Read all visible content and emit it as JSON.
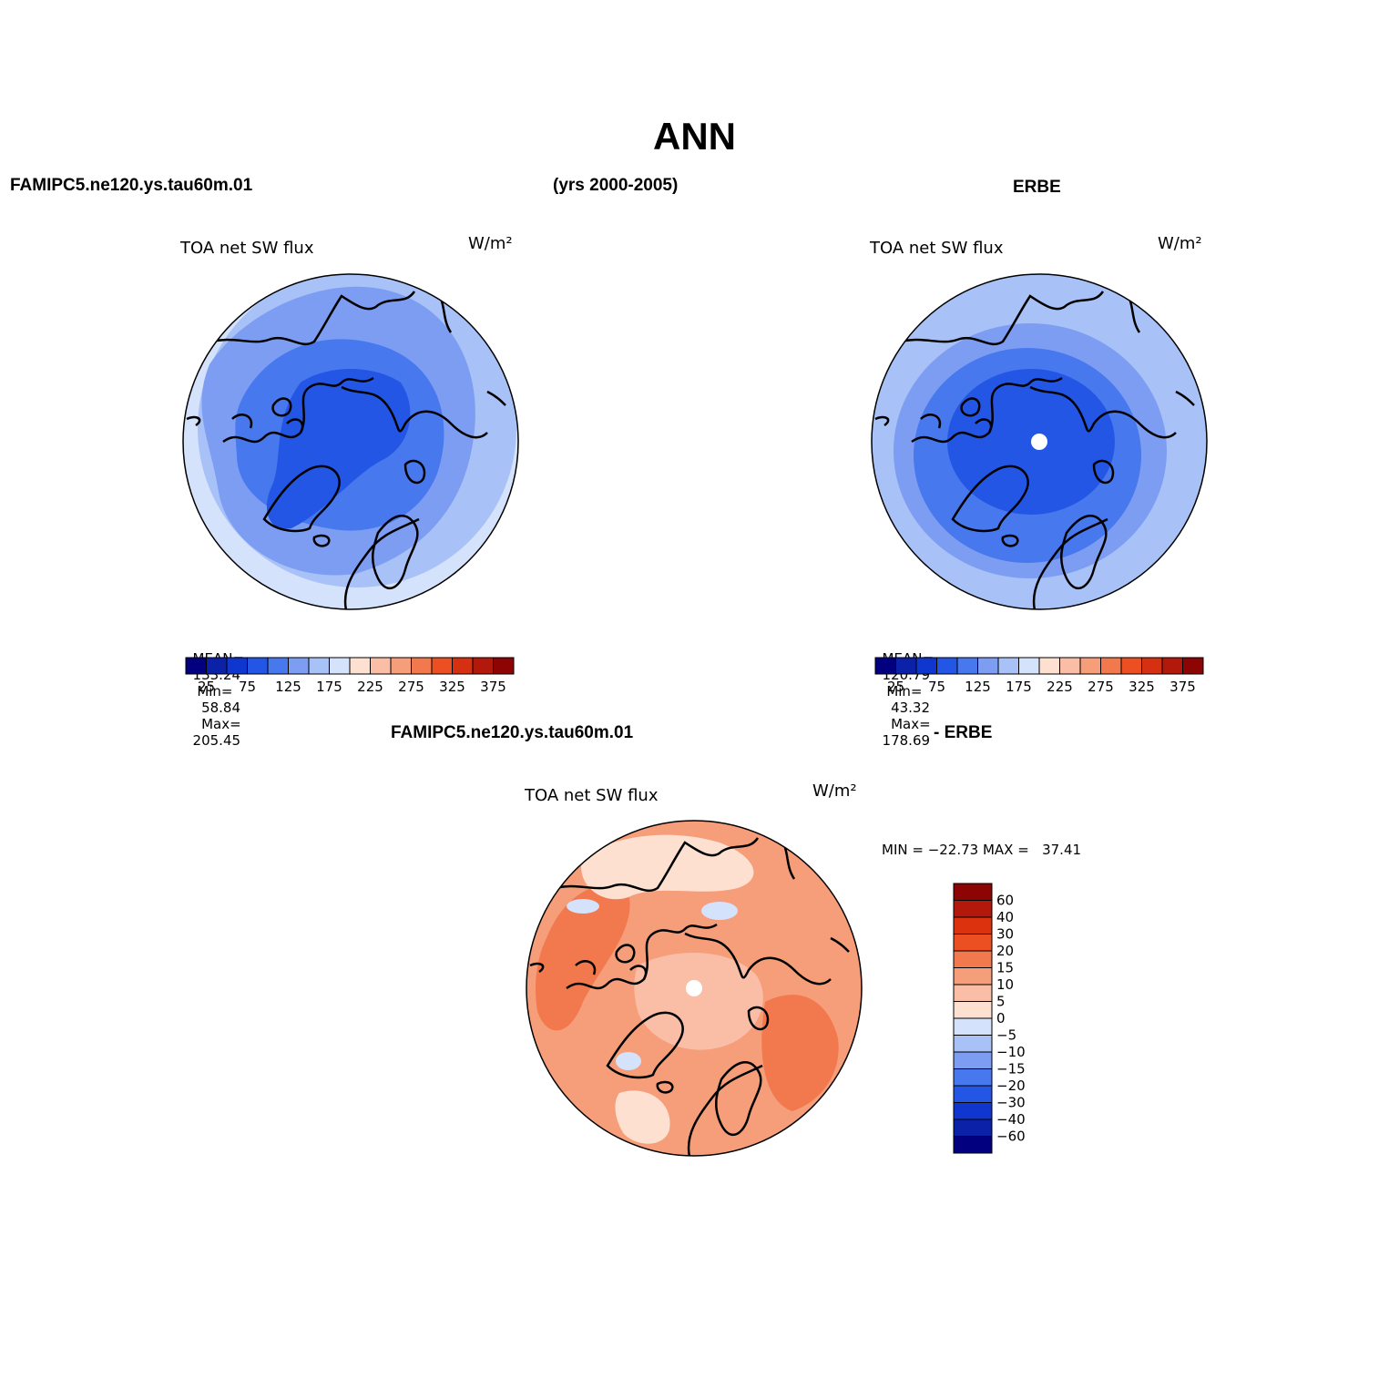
{
  "page": {
    "main_title": "ANN",
    "case_name": "FAMIPC5.ne120.ys.tau60m.01",
    "years": "(yrs 2000-2005)",
    "obs_name": "ERBE",
    "diff_case": "FAMIPC5.ne120.ys.tau60m.01",
    "diff_obs": "- ERBE"
  },
  "panels": {
    "model": {
      "variable": "TOA net SW flux",
      "units": "W/m²",
      "stats": {
        "mean_label": "MEAN=",
        "mean": "133.24",
        "min_label": "Min=",
        "min": "58.84",
        "max_label": "Max=",
        "max": "205.45"
      }
    },
    "obs": {
      "variable": "TOA net SW flux",
      "units": "W/m²",
      "stats": {
        "mean_label": "MEAN=",
        "mean": "120.79",
        "min_label": "Min=",
        "min": "43.32",
        "max_label": "Max=",
        "max": "178.69"
      }
    },
    "diff": {
      "variable": "TOA net SW flux",
      "units": "W/m²",
      "stats_text": "MIN = −22.73 MAX =   37.41"
    }
  },
  "colorbar_horizontal": {
    "colors": [
      "#02007f",
      "#0a21a8",
      "#0f37cf",
      "#2456e6",
      "#4878ee",
      "#7d9df3",
      "#a8c2f8",
      "#d4e3fb",
      "#fde0d0",
      "#f9bea5",
      "#f69d79",
      "#f2784e",
      "#ec4f22",
      "#d63012",
      "#b3190a",
      "#8d0404"
    ],
    "labels": [
      "25",
      "75",
      "125",
      "175",
      "225",
      "275",
      "325",
      "375"
    ]
  },
  "colorbar_vertical": {
    "colors": [
      "#8d0404",
      "#b3190a",
      "#dc320e",
      "#ec4f22",
      "#f2784e",
      "#f69d79",
      "#f9bea5",
      "#fde0d0",
      "#d4e3fb",
      "#a8c2f8",
      "#7d9df3",
      "#4878ee",
      "#2456e6",
      "#0f37cf",
      "#0a21a8",
      "#02007f"
    ],
    "labels": [
      "60",
      "40",
      "30",
      "20",
      "15",
      "10",
      "5",
      "0",
      "−5",
      "−10",
      "−15",
      "−20",
      "−30",
      "−40",
      "−60"
    ]
  },
  "map_fill": {
    "model": [
      "#a8c2f8",
      "#7d9df3",
      "#4878ee",
      "#2456e6"
    ],
    "obs": [
      "#a8c2f8",
      "#7d9df3",
      "#4878ee",
      "#2456e6"
    ],
    "diff": [
      "#f69d79",
      "#f2784e",
      "#f9bea5",
      "#fde0d0",
      "#d4e3fb"
    ]
  }
}
